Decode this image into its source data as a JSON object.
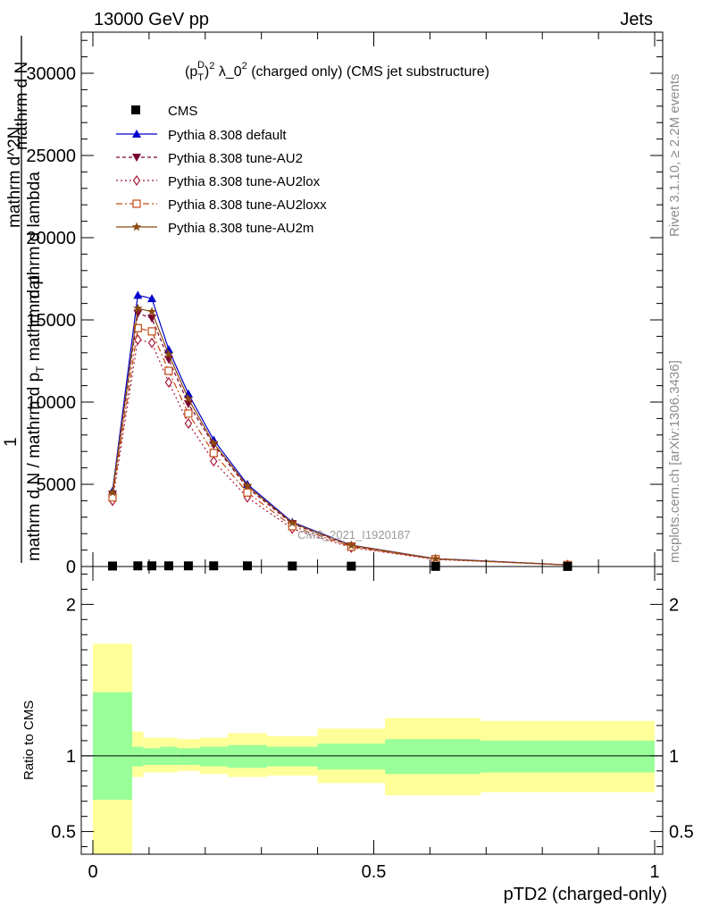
{
  "header": {
    "left": "13000 GeV pp",
    "right": "Jets",
    "side_top": "Rivet 3.1.10, ≥ 2.2M events",
    "side_bottom": "mcplots.cern.ch [arXiv:1306.3436]",
    "watermark": "CMS_2021_I1920187"
  },
  "chart_data": {
    "type": "line",
    "title": {
      "prefix": "(p",
      "sub": "T",
      "sup": "D",
      "rest": ")",
      "sup2": "2",
      "mid": " λ_0",
      "sup3": "2",
      "tail": " (charged only) (CMS jet substructure)"
    },
    "xlabel": "pTD2 (charged-only)",
    "ylabel_main": {
      "numerator": "1",
      "den_top": "mathrm d N",
      "den_frac": "mathrm d N / mathrm d p",
      "den_sub": "T",
      "den_tail": " mathrm d p",
      "den_end": "mathrm d lambda"
    },
    "ylabel_top_extra": "mathrm d^2N",
    "ylabel_ratio": "Ratio to CMS",
    "xlim": [
      0,
      1
    ],
    "ylim_main": [
      0,
      32500
    ],
    "ylim_ratio": [
      0.35,
      2.25
    ],
    "x_ticks": [
      0,
      0.5,
      1
    ],
    "x_tick_labels": [
      "0",
      "0.5",
      "1"
    ],
    "y_ticks_main": [
      0,
      5000,
      10000,
      15000,
      20000,
      25000,
      30000
    ],
    "y_tick_labels_main": [
      "0",
      "5000",
      "10000",
      "15000",
      "20000",
      "25000",
      "30000"
    ],
    "y_ticks_ratio": [
      0.5,
      1,
      2
    ],
    "y_tick_labels_ratio": [
      "0.5",
      "1",
      "2"
    ],
    "cms": {
      "name": "CMS",
      "x": [
        0.035,
        0.08,
        0.105,
        0.135,
        0.17,
        0.215,
        0.275,
        0.355,
        0.46,
        0.61,
        0.845
      ],
      "y": [
        30,
        40,
        40,
        40,
        40,
        40,
        40,
        30,
        20,
        10,
        5
      ]
    },
    "series": [
      {
        "name": "Pythia 8.308 default",
        "color": "#0000cc",
        "dash": "",
        "marker": "triangle",
        "x": [
          0.035,
          0.08,
          0.105,
          0.135,
          0.17,
          0.215,
          0.275,
          0.355,
          0.46,
          0.61,
          0.845
        ],
        "y": [
          4600,
          16500,
          16300,
          13200,
          10500,
          7700,
          5000,
          2700,
          1300,
          480,
          100
        ]
      },
      {
        "name": "Pythia 8.308 tune-AU2",
        "color": "#7a0033",
        "dash": "4,3",
        "marker": "triangle-down",
        "x": [
          0.035,
          0.08,
          0.105,
          0.135,
          0.17,
          0.215,
          0.275,
          0.355,
          0.46,
          0.61,
          0.845
        ],
        "y": [
          4400,
          15400,
          15100,
          12600,
          9900,
          7400,
          4800,
          2600,
          1250,
          460,
          95
        ]
      },
      {
        "name": "Pythia 8.308 tune-AU2lox",
        "color": "#a8183a",
        "dash": "2,3",
        "marker": "diamond",
        "x": [
          0.035,
          0.08,
          0.105,
          0.135,
          0.17,
          0.215,
          0.275,
          0.355,
          0.46,
          0.61,
          0.845
        ],
        "y": [
          4000,
          13800,
          13600,
          11200,
          8700,
          6400,
          4200,
          2300,
          1150,
          430,
          90
        ]
      },
      {
        "name": "Pythia 8.308 tune-AU2loxx",
        "color": "#c24a12",
        "dash": "7,3,2,3",
        "marker": "square",
        "x": [
          0.035,
          0.08,
          0.105,
          0.135,
          0.17,
          0.215,
          0.275,
          0.355,
          0.46,
          0.61,
          0.845
        ],
        "y": [
          4200,
          14500,
          14300,
          11900,
          9300,
          6900,
          4500,
          2450,
          1200,
          450,
          92
        ]
      },
      {
        "name": "Pythia 8.308 tune-AU2m",
        "color": "#8b4a10",
        "dash": "",
        "marker": "star",
        "x": [
          0.035,
          0.08,
          0.105,
          0.135,
          0.17,
          0.215,
          0.275,
          0.355,
          0.46,
          0.61,
          0.845
        ],
        "y": [
          4500,
          15700,
          15500,
          12900,
          10200,
          7500,
          4900,
          2650,
          1280,
          470,
          98
        ]
      }
    ],
    "ratio_bands": {
      "green_color": "#99ff99",
      "yellow_color": "#ffff99",
      "bins": [
        {
          "x0": 0.0,
          "x1": 0.07,
          "green": [
            0.71,
            1.42
          ],
          "yellow": [
            0.35,
            1.74
          ]
        },
        {
          "x0": 0.07,
          "x1": 0.09,
          "green": [
            0.93,
            1.06
          ],
          "yellow": [
            0.86,
            1.16
          ]
        },
        {
          "x0": 0.09,
          "x1": 0.12,
          "green": [
            0.94,
            1.05
          ],
          "yellow": [
            0.89,
            1.12
          ]
        },
        {
          "x0": 0.12,
          "x1": 0.15,
          "green": [
            0.94,
            1.06
          ],
          "yellow": [
            0.89,
            1.12
          ]
        },
        {
          "x0": 0.15,
          "x1": 0.19,
          "green": [
            0.94,
            1.05
          ],
          "yellow": [
            0.9,
            1.11
          ]
        },
        {
          "x0": 0.19,
          "x1": 0.24,
          "green": [
            0.93,
            1.06
          ],
          "yellow": [
            0.88,
            1.12
          ]
        },
        {
          "x0": 0.24,
          "x1": 0.31,
          "green": [
            0.92,
            1.07
          ],
          "yellow": [
            0.86,
            1.15
          ]
        },
        {
          "x0": 0.31,
          "x1": 0.4,
          "green": [
            0.93,
            1.06
          ],
          "yellow": [
            0.87,
            1.13
          ]
        },
        {
          "x0": 0.4,
          "x1": 0.52,
          "green": [
            0.91,
            1.08
          ],
          "yellow": [
            0.82,
            1.18
          ]
        },
        {
          "x0": 0.52,
          "x1": 0.69,
          "green": [
            0.88,
            1.11
          ],
          "yellow": [
            0.74,
            1.25
          ]
        },
        {
          "x0": 0.69,
          "x1": 1.0,
          "green": [
            0.89,
            1.1
          ],
          "yellow": [
            0.76,
            1.23
          ]
        }
      ]
    }
  }
}
